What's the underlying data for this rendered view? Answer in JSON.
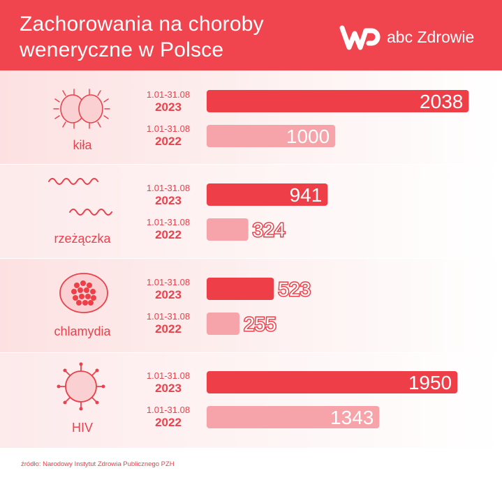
{
  "header": {
    "title_line1": "Zachorowania na choroby",
    "title_line2": "weneryczne w Polsce",
    "brand": "abc Zdrowie"
  },
  "colors": {
    "accent": "#f0454f",
    "bar_2023": "#ee3f48",
    "bar_2022": "#f6a3a9"
  },
  "icons": [
    "syphilis-bacteria-icon",
    "gonorrhea-bacteria-icon",
    "chlamydia-cell-icon",
    "hiv-virus-icon"
  ],
  "chart_data": {
    "type": "bar",
    "orientation": "horizontal",
    "categories": [
      "kiła",
      "rzeżączka",
      "chlamydia",
      "HIV"
    ],
    "series": [
      {
        "range": "1.01-31.08",
        "name": "2023",
        "values": [
          2038,
          941,
          523,
          1950
        ]
      },
      {
        "range": "1.01-31.08",
        "name": "2022",
        "values": [
          1000,
          324,
          255,
          1343
        ]
      }
    ]
  },
  "footer": {
    "source": "źródło: Narodowy Instytut Zdrowia Publicznego PZH"
  }
}
